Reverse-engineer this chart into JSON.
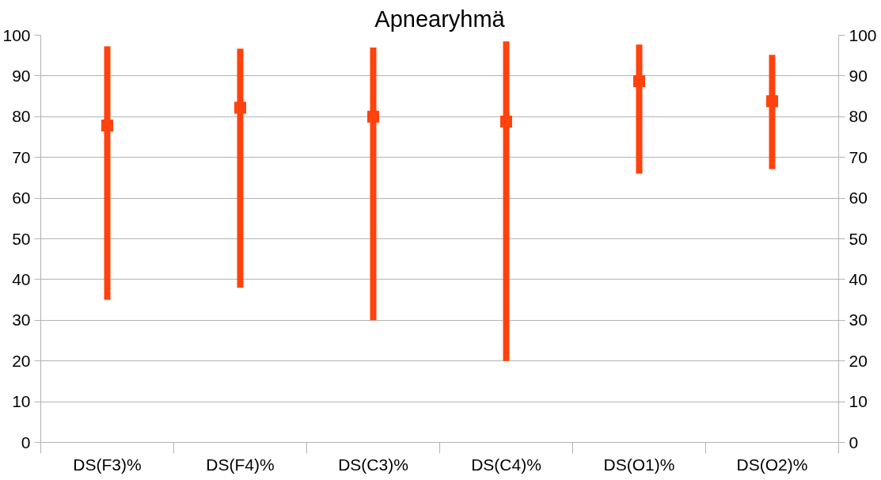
{
  "chart_data": {
    "type": "scatter",
    "title": "Apnearyhmä",
    "categories": [
      "DS(F3)%",
      "DS(F4)%",
      "DS(C3)%",
      "DS(C4)%",
      "DS(O1)%",
      "DS(O2)%"
    ],
    "values": [
      77.8,
      82.2,
      80,
      78.8,
      88.7,
      83.8
    ],
    "errors": [
      [
        35,
        97.3
      ],
      [
        38,
        96.7
      ],
      [
        30,
        97
      ],
      [
        20,
        98.5
      ],
      [
        66,
        97.7
      ],
      [
        67.1,
        95.2
      ]
    ],
    "color": "#ff420e",
    "ylim": [
      0,
      100
    ],
    "yticks": [
      0,
      10,
      20,
      30,
      40,
      50,
      60,
      70,
      80,
      90,
      100
    ],
    "y2lim": [
      0,
      100
    ],
    "y2ticks": [
      0,
      10,
      20,
      30,
      40,
      50,
      60,
      70,
      80,
      90,
      100
    ],
    "grid": "y",
    "marker": "square"
  }
}
